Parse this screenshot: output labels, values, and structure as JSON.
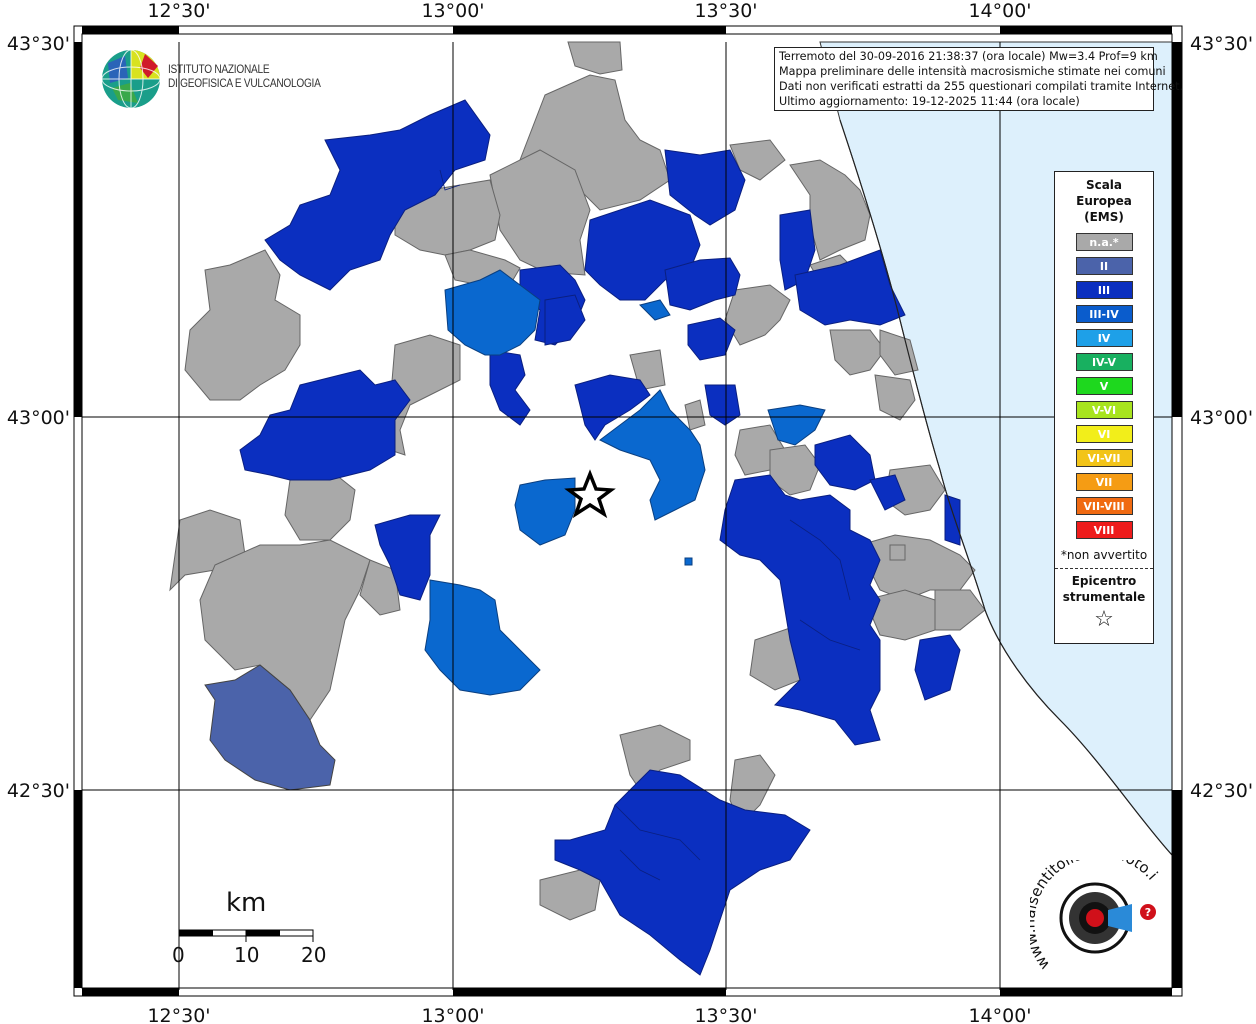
{
  "map": {
    "lon_labels": [
      "12°30'",
      "13°00'",
      "13°30'",
      "14°00'"
    ],
    "lat_labels": [
      "43°30'",
      "43°00'",
      "42°30'"
    ],
    "sea_color": "#ddf0fc",
    "border_color": "#000000"
  },
  "info": {
    "line1": "Terremoto del 30-09-2016 21:38:37 (ora locale) Mw=3.4 Prof=9 km",
    "line2": "Mappa preliminare delle intensità macrosismiche stimate nei comuni",
    "line3": "Dati non verificati estratti da 255 questionari compilati tramite Internet.",
    "line4": "Ultimo aggiornamento: 19-12-2025 11:44 (ora locale)"
  },
  "legend": {
    "title_line1": "Scala",
    "title_line2": "Europea",
    "title_line3": "(EMS)",
    "items": [
      {
        "label": "n.a.*",
        "color": "#a9a9a9"
      },
      {
        "label": "II",
        "color": "#4b63aa"
      },
      {
        "label": "III",
        "color": "#0b2fc0"
      },
      {
        "label": "III-IV",
        "color": "#0a5ccc"
      },
      {
        "label": "IV",
        "color": "#1ea0e8"
      },
      {
        "label": "IV-V",
        "color": "#18b060"
      },
      {
        "label": "V",
        "color": "#1ed81e"
      },
      {
        "label": "V-VI",
        "color": "#a8e41e"
      },
      {
        "label": "VI",
        "color": "#f2ee1a"
      },
      {
        "label": "VI-VII",
        "color": "#f2c418"
      },
      {
        "label": "VII",
        "color": "#f59c14"
      },
      {
        "label": "VII-VIII",
        "color": "#f06a12"
      },
      {
        "label": "VIII",
        "color": "#ee1c1c"
      }
    ],
    "note": "*non avvertito",
    "epicenter_line1": "Epicentro",
    "epicenter_line2": "strumentale",
    "epicenter_symbol": "☆"
  },
  "ingv": {
    "line1": "ISTITUTO NAZIONALE",
    "line2": "DI GEOFISICA E VULCANOLOGIA"
  },
  "scale_bar": {
    "unit": "km",
    "ticks": [
      "0",
      "10",
      "20"
    ]
  },
  "hsit": {
    "text": "www.haisentitoilterremoto.it"
  }
}
